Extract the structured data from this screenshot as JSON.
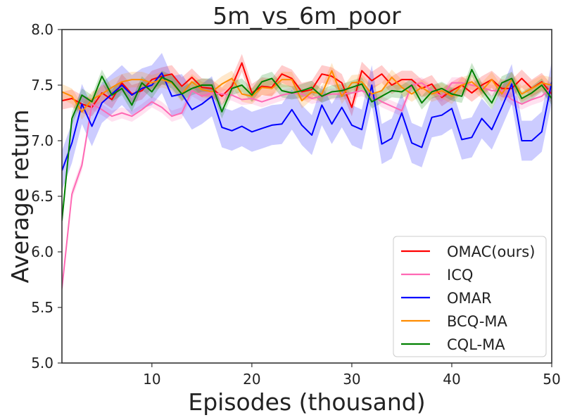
{
  "chart_data": {
    "type": "line",
    "title": "5m_vs_6m_poor",
    "xlabel": "Episodes (thousand)",
    "ylabel": "Average return",
    "xlim": [
      1,
      50
    ],
    "ylim": [
      5.0,
      8.0
    ],
    "xticks": [
      10,
      20,
      30,
      40,
      50
    ],
    "yticks": [
      5.0,
      5.5,
      6.0,
      6.5,
      7.0,
      7.5,
      8.0
    ],
    "ytick_labels": [
      "5.0",
      "5.5",
      "6.0",
      "6.5",
      "7.0",
      "7.5",
      "8.0"
    ],
    "xtick_labels": [
      "10",
      "20",
      "30",
      "40",
      "50"
    ],
    "grid": false,
    "legend_position": "bottom-right",
    "series": [
      {
        "name": "OMAC(ours)",
        "color": "#ff0000",
        "band_width": 0.08,
        "values": [
          7.36,
          7.38,
          7.33,
          7.3,
          7.43,
          7.37,
          7.52,
          7.42,
          7.45,
          7.55,
          7.58,
          7.6,
          7.49,
          7.57,
          7.48,
          7.47,
          7.4,
          7.49,
          7.7,
          7.43,
          7.49,
          7.48,
          7.6,
          7.56,
          7.44,
          7.46,
          7.6,
          7.58,
          7.52,
          7.3,
          7.63,
          7.54,
          7.6,
          7.5,
          7.55,
          7.55,
          7.47,
          7.51,
          7.39,
          7.45,
          7.5,
          7.43,
          7.5,
          7.55,
          7.47,
          7.47,
          7.56,
          7.47,
          7.53,
          7.42
        ]
      },
      {
        "name": "ICQ",
        "color": "#ff69b4",
        "band_width": 0.05,
        "values": [
          5.67,
          6.52,
          6.78,
          7.33,
          7.28,
          7.22,
          7.25,
          7.22,
          7.28,
          7.35,
          7.3,
          7.22,
          7.25,
          7.45,
          7.4,
          7.43,
          7.42,
          7.41,
          7.37,
          7.38,
          7.35,
          7.38,
          7.41,
          7.43,
          7.42,
          7.38,
          7.4,
          7.42,
          7.42,
          7.43,
          7.45,
          7.41,
          7.35,
          7.31,
          7.27,
          7.5,
          7.52,
          7.45,
          7.4,
          7.52,
          7.52,
          7.5,
          7.48,
          7.45,
          7.45,
          7.37,
          7.33,
          7.37,
          7.4,
          7.48
        ]
      },
      {
        "name": "OMAR",
        "color": "#0000ff",
        "band_width": 0.18,
        "values": [
          6.73,
          6.98,
          7.33,
          7.13,
          7.34,
          7.42,
          7.5,
          7.41,
          7.47,
          7.5,
          7.61,
          7.4,
          7.42,
          7.28,
          7.33,
          7.4,
          7.12,
          7.09,
          7.13,
          7.08,
          7.11,
          7.14,
          7.15,
          7.28,
          7.14,
          7.05,
          7.32,
          7.15,
          7.3,
          7.14,
          7.1,
          7.5,
          6.97,
          7.02,
          7.25,
          6.98,
          6.94,
          7.21,
          7.23,
          7.29,
          7.01,
          7.03,
          7.2,
          7.1,
          7.3,
          7.51,
          7.0,
          7.0,
          7.08,
          7.53
        ]
      },
      {
        "name": "BCQ-MA",
        "color": "#ff8c00",
        "band_width": 0.07,
        "values": [
          7.44,
          7.4,
          7.26,
          7.37,
          7.42,
          7.48,
          7.53,
          7.55,
          7.55,
          7.52,
          7.55,
          7.52,
          7.42,
          7.53,
          7.46,
          7.44,
          7.51,
          7.56,
          7.42,
          7.4,
          7.48,
          7.47,
          7.55,
          7.55,
          7.36,
          7.44,
          7.42,
          7.63,
          7.4,
          7.52,
          7.53,
          7.42,
          7.45,
          7.57,
          7.48,
          7.42,
          7.48,
          7.42,
          7.45,
          7.4,
          7.5,
          7.53,
          7.45,
          7.55,
          7.42,
          7.55,
          7.42,
          7.47,
          7.52,
          7.5
        ]
      },
      {
        "name": "CQL-MA",
        "color": "#008000",
        "band_width": 0.06,
        "values": [
          6.28,
          7.2,
          7.41,
          7.35,
          7.58,
          7.41,
          7.47,
          7.32,
          7.52,
          7.44,
          7.57,
          7.53,
          7.42,
          7.47,
          7.5,
          7.5,
          7.26,
          7.47,
          7.5,
          7.41,
          7.53,
          7.56,
          7.45,
          7.43,
          7.45,
          7.48,
          7.4,
          7.44,
          7.45,
          7.48,
          7.51,
          7.35,
          7.4,
          7.45,
          7.44,
          7.5,
          7.34,
          7.44,
          7.47,
          7.42,
          7.4,
          7.64,
          7.46,
          7.34,
          7.52,
          7.56,
          7.38,
          7.43,
          7.5,
          7.38
        ]
      }
    ]
  }
}
